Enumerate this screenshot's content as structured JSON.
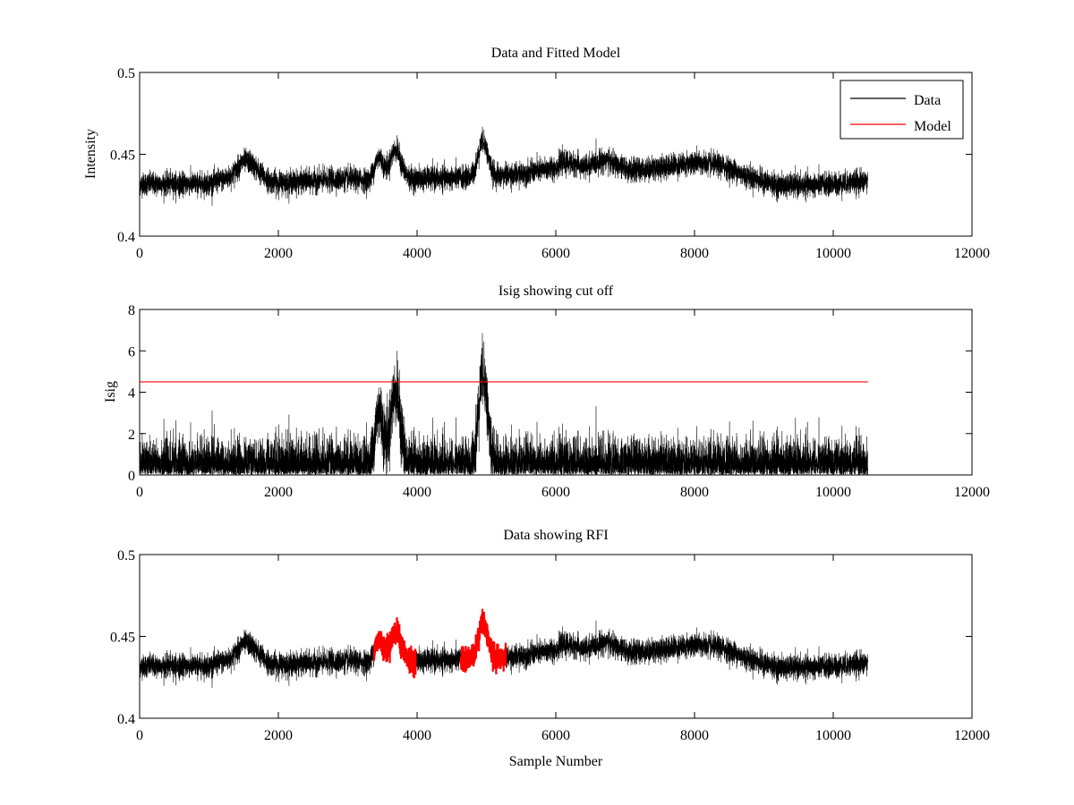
{
  "chart_data": [
    {
      "type": "line",
      "title": "Data and Fitted Model",
      "xlabel": "",
      "ylabel": "Intensity",
      "xlim": [
        0,
        12000
      ],
      "ylim": [
        0.4,
        0.5
      ],
      "xticks": [
        "0",
        "2000",
        "4000",
        "6000",
        "8000",
        "10000",
        "12000"
      ],
      "yticks": [
        "0.4",
        "0.45",
        "0.5"
      ],
      "legend": {
        "position": "top-right",
        "entries": [
          {
            "label": "Data",
            "color": "#000000"
          },
          {
            "label": "Model",
            "color": "#ff0000"
          }
        ]
      },
      "grid": false
    },
    {
      "type": "line",
      "title": "Isig showing cut off",
      "xlabel": "",
      "ylabel": "Isig",
      "xlim": [
        0,
        12000
      ],
      "ylim": [
        0,
        8
      ],
      "xticks": [
        "0",
        "2000",
        "4000",
        "6000",
        "8000",
        "10000",
        "12000"
      ],
      "yticks": [
        "0",
        "2",
        "4",
        "6",
        "8"
      ],
      "cutoff": 4.5,
      "cutoff_color": "#ff0000",
      "grid": false
    },
    {
      "type": "line",
      "title": "Data showing RFI",
      "xlabel": "Sample Number",
      "ylabel": "",
      "xlim": [
        0,
        12000
      ],
      "ylim": [
        0.4,
        0.5
      ],
      "xticks": [
        "0",
        "2000",
        "4000",
        "6000",
        "8000",
        "10000",
        "12000"
      ],
      "yticks": [
        "0.4",
        "0.45",
        "0.5"
      ],
      "rfi_ranges": [
        [
          3380,
          3980
        ],
        [
          4630,
          5280
        ]
      ],
      "rfi_color": "#ff0000",
      "grid": false
    }
  ],
  "series": {
    "n_samples": 10500,
    "noise_std": 0.0035,
    "isig_sigma": 0.0045,
    "model_points": [
      [
        0,
        0.432
      ],
      [
        1000,
        0.432
      ],
      [
        1300,
        0.436
      ],
      [
        1500,
        0.446
      ],
      [
        1600,
        0.445
      ],
      [
        1800,
        0.436
      ],
      [
        1900,
        0.433
      ],
      [
        2200,
        0.433
      ],
      [
        3000,
        0.435
      ],
      [
        3300,
        0.434
      ],
      [
        4000,
        0.435
      ],
      [
        5000,
        0.436
      ],
      [
        5500,
        0.438
      ],
      [
        6000,
        0.442
      ],
      [
        6100,
        0.445
      ],
      [
        6300,
        0.444
      ],
      [
        6400,
        0.442
      ],
      [
        6600,
        0.445
      ],
      [
        6700,
        0.447
      ],
      [
        6900,
        0.443
      ],
      [
        7100,
        0.44
      ],
      [
        7500,
        0.442
      ],
      [
        8000,
        0.445
      ],
      [
        8400,
        0.443
      ],
      [
        8800,
        0.436
      ],
      [
        9200,
        0.431
      ],
      [
        9600,
        0.431
      ],
      [
        10100,
        0.432
      ],
      [
        10500,
        0.434
      ]
    ],
    "rfi_bumps": [
      [
        3450,
        60,
        0.014
      ],
      [
        3690,
        80,
        0.018
      ],
      [
        4950,
        70,
        0.022
      ]
    ]
  }
}
